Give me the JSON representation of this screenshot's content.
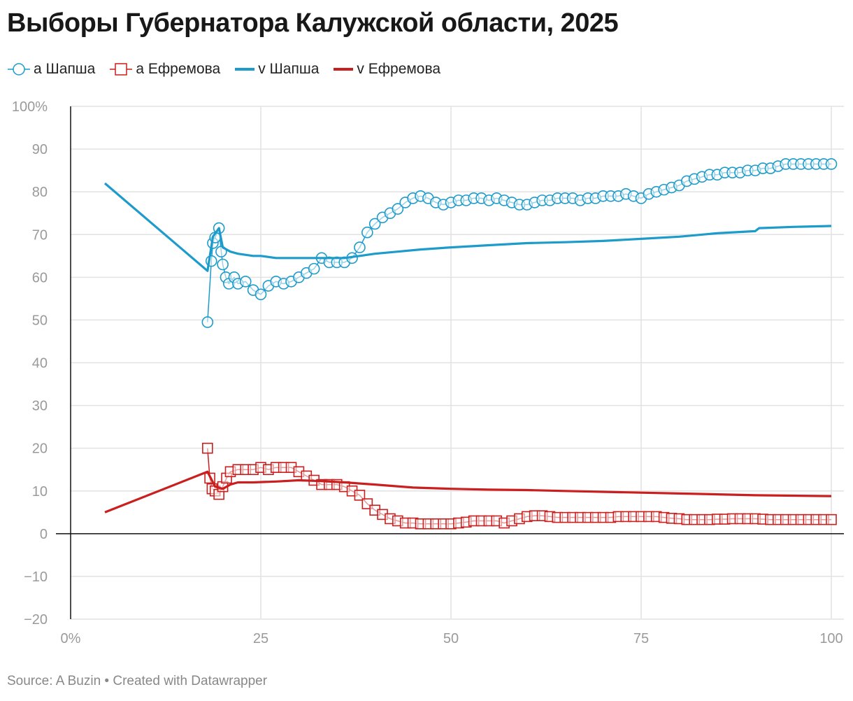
{
  "title": "Выборы Губернатора Калужской области, 2025",
  "footer": "Source: A Buzin • Created with Datawrapper",
  "legend": {
    "a_shapsha": "a Шапша",
    "a_efremova": "a Ефремова",
    "v_shapsha": "v Шапша",
    "v_efremova": "v Ефремова"
  },
  "colors": {
    "shapsha": "#1d9bcb",
    "efremova": "#c91f1f",
    "grid": "#e2e2e2",
    "tick": "#9a9a9a"
  },
  "chart_data": {
    "type": "line",
    "title": "Выборы Губернатора Калужской области, 2025",
    "xlim": [
      0,
      100
    ],
    "ylim": [
      -20,
      100
    ],
    "x_ticks": [
      "0%",
      "25",
      "50",
      "75",
      "100"
    ],
    "y_ticks": [
      "100%",
      "90",
      "80",
      "70",
      "60",
      "50",
      "40",
      "30",
      "20",
      "10",
      "0",
      "−10",
      "−20"
    ],
    "grid": true,
    "legend_position": "top-left",
    "series": [
      {
        "name": "a Шапша",
        "style": "line+circle-markers",
        "color": "#1d9bcb",
        "points": [
          [
            18,
            49.5
          ],
          [
            18.5,
            63.8
          ],
          [
            18.7,
            68
          ],
          [
            19,
            69.3
          ],
          [
            19.5,
            71.5
          ],
          [
            19.8,
            66
          ],
          [
            20,
            63
          ],
          [
            20.4,
            60
          ],
          [
            20.8,
            58.5
          ],
          [
            21.5,
            60
          ],
          [
            22,
            58.5
          ],
          [
            23,
            59
          ],
          [
            24,
            57
          ],
          [
            25,
            56
          ],
          [
            26,
            58
          ],
          [
            27,
            59
          ],
          [
            28,
            58.5
          ],
          [
            29,
            59
          ],
          [
            30,
            60
          ],
          [
            31,
            61
          ],
          [
            32,
            62
          ],
          [
            33,
            64.5
          ],
          [
            34,
            63.5
          ],
          [
            35,
            63.5
          ],
          [
            36,
            63.5
          ],
          [
            37,
            64.5
          ],
          [
            38,
            67
          ],
          [
            39,
            70.5
          ],
          [
            40,
            72.5
          ],
          [
            41,
            74
          ],
          [
            42,
            75
          ],
          [
            43,
            76
          ],
          [
            44,
            77.5
          ],
          [
            45,
            78.5
          ],
          [
            46,
            79
          ],
          [
            47,
            78.5
          ],
          [
            48,
            77.5
          ],
          [
            49,
            77
          ],
          [
            50,
            77.5
          ],
          [
            51,
            78
          ],
          [
            52,
            78
          ],
          [
            53,
            78.5
          ],
          [
            54,
            78.5
          ],
          [
            55,
            78
          ],
          [
            56,
            78.5
          ],
          [
            57,
            78
          ],
          [
            58,
            77.5
          ],
          [
            59,
            77
          ],
          [
            60,
            77
          ],
          [
            61,
            77.5
          ],
          [
            62,
            78
          ],
          [
            63,
            78
          ],
          [
            64,
            78.5
          ],
          [
            65,
            78.5
          ],
          [
            66,
            78.5
          ],
          [
            67,
            78
          ],
          [
            68,
            78.5
          ],
          [
            69,
            78.5
          ],
          [
            70,
            79
          ],
          [
            71,
            79
          ],
          [
            72,
            79
          ],
          [
            73,
            79.5
          ],
          [
            74,
            79
          ],
          [
            75,
            78.5
          ],
          [
            76,
            79.5
          ],
          [
            77,
            80
          ],
          [
            78,
            80.5
          ],
          [
            79,
            81
          ],
          [
            80,
            81.5
          ],
          [
            81,
            82.5
          ],
          [
            82,
            83
          ],
          [
            83,
            83.5
          ],
          [
            84,
            84
          ],
          [
            85,
            84
          ],
          [
            86,
            84.5
          ],
          [
            87,
            84.5
          ],
          [
            88,
            84.5
          ],
          [
            89,
            85
          ],
          [
            90,
            85
          ],
          [
            91,
            85.5
          ],
          [
            92,
            85.5
          ],
          [
            93,
            86
          ],
          [
            94,
            86.5
          ],
          [
            95,
            86.5
          ],
          [
            96,
            86.5
          ],
          [
            97,
            86.5
          ],
          [
            98,
            86.5
          ],
          [
            99,
            86.5
          ],
          [
            100,
            86.5
          ]
        ]
      },
      {
        "name": "a Ефремова",
        "style": "line+square-markers",
        "color": "#c91f1f",
        "points": [
          [
            18,
            20
          ],
          [
            18.3,
            13
          ],
          [
            18.6,
            10.5
          ],
          [
            19,
            10
          ],
          [
            19.5,
            9.2
          ],
          [
            20,
            11
          ],
          [
            20.5,
            13
          ],
          [
            21,
            14.5
          ],
          [
            22,
            15
          ],
          [
            23,
            15
          ],
          [
            24,
            15
          ],
          [
            25,
            15.5
          ],
          [
            26,
            15
          ],
          [
            27,
            15.5
          ],
          [
            28,
            15.5
          ],
          [
            29,
            15.5
          ],
          [
            30,
            14.5
          ],
          [
            31,
            13.5
          ],
          [
            32,
            12.5
          ],
          [
            33,
            11.5
          ],
          [
            34,
            11.5
          ],
          [
            35,
            11.5
          ],
          [
            36,
            11
          ],
          [
            37,
            10
          ],
          [
            38,
            9
          ],
          [
            39,
            7
          ],
          [
            40,
            5.5
          ],
          [
            41,
            4.5
          ],
          [
            42,
            3.5
          ],
          [
            43,
            3
          ],
          [
            44,
            2.5
          ],
          [
            45,
            2.5
          ],
          [
            46,
            2.3
          ],
          [
            47,
            2.3
          ],
          [
            48,
            2.3
          ],
          [
            49,
            2.3
          ],
          [
            50,
            2.3
          ],
          [
            51,
            2.5
          ],
          [
            52,
            2.7
          ],
          [
            53,
            3
          ],
          [
            54,
            3
          ],
          [
            55,
            3
          ],
          [
            56,
            3
          ],
          [
            57,
            2.5
          ],
          [
            58,
            3
          ],
          [
            59,
            3.5
          ],
          [
            60,
            4
          ],
          [
            61,
            4.2
          ],
          [
            62,
            4.2
          ],
          [
            63,
            4
          ],
          [
            64,
            3.8
          ],
          [
            65,
            3.8
          ],
          [
            66,
            3.8
          ],
          [
            67,
            3.8
          ],
          [
            68,
            3.8
          ],
          [
            69,
            3.8
          ],
          [
            70,
            3.8
          ],
          [
            71,
            3.8
          ],
          [
            72,
            4
          ],
          [
            73,
            4
          ],
          [
            74,
            4
          ],
          [
            75,
            4
          ],
          [
            76,
            4
          ],
          [
            77,
            4
          ],
          [
            78,
            3.8
          ],
          [
            79,
            3.6
          ],
          [
            80,
            3.5
          ],
          [
            81,
            3.3
          ],
          [
            82,
            3.3
          ],
          [
            83,
            3.3
          ],
          [
            84,
            3.3
          ],
          [
            85,
            3.4
          ],
          [
            86,
            3.4
          ],
          [
            87,
            3.5
          ],
          [
            88,
            3.5
          ],
          [
            89,
            3.5
          ],
          [
            90,
            3.5
          ],
          [
            91,
            3.4
          ],
          [
            92,
            3.3
          ],
          [
            93,
            3.3
          ],
          [
            94,
            3.3
          ],
          [
            95,
            3.3
          ],
          [
            96,
            3.3
          ],
          [
            97,
            3.3
          ],
          [
            98,
            3.3
          ],
          [
            99,
            3.3
          ],
          [
            100,
            3.3
          ]
        ]
      },
      {
        "name": "v Шапша",
        "style": "line",
        "color": "#1d9bcb",
        "points": [
          [
            4.5,
            82
          ],
          [
            18,
            61.5
          ],
          [
            18.7,
            69.5
          ],
          [
            19.5,
            71.5
          ],
          [
            20,
            67
          ],
          [
            21,
            66
          ],
          [
            22,
            65.5
          ],
          [
            24,
            65
          ],
          [
            25,
            65
          ],
          [
            27,
            64.5
          ],
          [
            30,
            64.5
          ],
          [
            33,
            64.5
          ],
          [
            36,
            64.5
          ],
          [
            38,
            65
          ],
          [
            40,
            65.5
          ],
          [
            43,
            66
          ],
          [
            46,
            66.5
          ],
          [
            50,
            67
          ],
          [
            55,
            67.5
          ],
          [
            60,
            68
          ],
          [
            65,
            68.2
          ],
          [
            70,
            68.5
          ],
          [
            75,
            69
          ],
          [
            80,
            69.5
          ],
          [
            85,
            70.3
          ],
          [
            90,
            70.8
          ],
          [
            90.5,
            71.5
          ],
          [
            95,
            71.8
          ],
          [
            100,
            72
          ]
        ]
      },
      {
        "name": "v Ефремова",
        "style": "line",
        "color": "#c91f1f",
        "points": [
          [
            4.5,
            5
          ],
          [
            18,
            14.5
          ],
          [
            19,
            11
          ],
          [
            20,
            10.5
          ],
          [
            21,
            11.5
          ],
          [
            22,
            12
          ],
          [
            24,
            12
          ],
          [
            27,
            12.2
          ],
          [
            30,
            12.5
          ],
          [
            33,
            12.3
          ],
          [
            36,
            12
          ],
          [
            40,
            11.5
          ],
          [
            45,
            10.8
          ],
          [
            50,
            10.5
          ],
          [
            55,
            10.3
          ],
          [
            60,
            10.2
          ],
          [
            65,
            10
          ],
          [
            70,
            9.8
          ],
          [
            75,
            9.6
          ],
          [
            80,
            9.4
          ],
          [
            85,
            9.2
          ],
          [
            90,
            9
          ],
          [
            95,
            8.9
          ],
          [
            100,
            8.8
          ]
        ]
      }
    ]
  }
}
